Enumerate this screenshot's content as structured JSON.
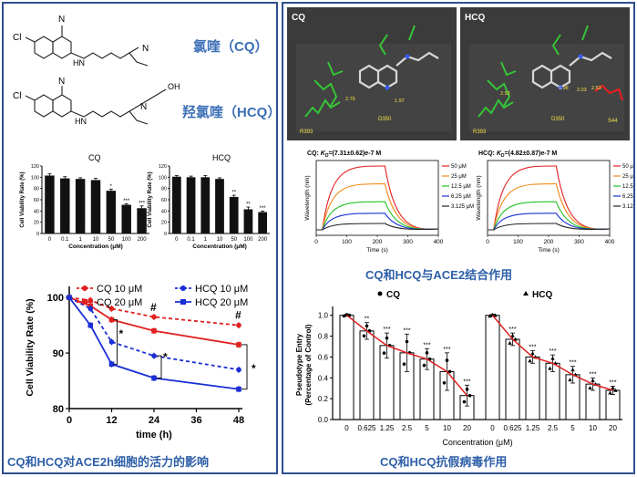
{
  "structures": {
    "cq": {
      "name": "氯喹（CQ）",
      "atoms": {
        "cl": "Cl",
        "n_ring": "N",
        "nh": "HN",
        "n": "N"
      }
    },
    "hcq": {
      "name": "羟氯喹（HCQ）",
      "atoms": {
        "cl": "Cl",
        "n_ring": "N",
        "nh": "HN",
        "n": "N",
        "oh": "OH"
      }
    }
  },
  "viability_bars": {
    "ylabel": "Cell Viability Rate (%)",
    "xlabel": "Concentration (μM)",
    "categories": [
      "0",
      "0.1",
      "1",
      "10",
      "50",
      "100",
      "200"
    ],
    "yticks": [
      "0",
      "20",
      "40",
      "60",
      "80",
      "100",
      "120"
    ],
    "ylim": [
      0,
      120
    ],
    "charts": [
      {
        "title": "CQ",
        "values": [
          103,
          98,
          97,
          95,
          76,
          51,
          45
        ],
        "errors": [
          3,
          3,
          2,
          3,
          3,
          2,
          4
        ],
        "sig": [
          "",
          "",
          "",
          "",
          "*",
          "***",
          "***"
        ]
      },
      {
        "title": "HCQ",
        "values": [
          101,
          100,
          100,
          97,
          65,
          43,
          38
        ],
        "errors": [
          2,
          2,
          3,
          2,
          3,
          4,
          2
        ],
        "sig": [
          "",
          "",
          "",
          "",
          "**",
          "**",
          "***"
        ]
      }
    ]
  },
  "time_course": {
    "type": "line",
    "ylabel": "Cell Viability Rate (%)",
    "xlabel": "time (h)",
    "x": [
      0,
      6,
      12,
      24,
      48
    ],
    "xticks": [
      "0",
      "12",
      "24",
      "36",
      "48"
    ],
    "yticks": [
      "80",
      "90",
      "100"
    ],
    "ylim": [
      80,
      102
    ],
    "series": [
      {
        "name": "CQ 10 μM",
        "color": "#e02020",
        "dash": true,
        "marker": "circle",
        "values": [
          100,
          99.5,
          98,
          96.5,
          95
        ]
      },
      {
        "name": "CQ 20 μM",
        "color": "#e02020",
        "dash": false,
        "marker": "square",
        "values": [
          100,
          98.5,
          96,
          94,
          91.5
        ]
      },
      {
        "name": "HCQ 10 μM",
        "color": "#1a2ed6",
        "dash": true,
        "marker": "circle",
        "values": [
          100,
          98,
          92,
          89.5,
          87
        ]
      },
      {
        "name": "HCQ 20 μM",
        "color": "#1a2ed6",
        "dash": false,
        "marker": "square",
        "values": [
          100,
          95,
          88,
          85.5,
          83.5
        ]
      }
    ],
    "annotations": [
      "#",
      "#",
      "*",
      "*",
      "*"
    ]
  },
  "left_caption": "CQ和HCQ对ACE2h细胞的活力的影响",
  "docking": {
    "cq": {
      "title": "CQ",
      "residues": [
        "R393",
        "D350"
      ],
      "distances": [
        "2.76",
        "1.97"
      ]
    },
    "hcq": {
      "title": "HCQ",
      "residues": [
        "R393",
        "D350",
        "S44"
      ],
      "distances": [
        "2.52",
        "1.98",
        "2.03",
        "2.63"
      ]
    }
  },
  "spr": {
    "ylabel": "Wavelength (nm)",
    "xlabel": "Time (s)",
    "xticks": [
      "0",
      "100",
      "200",
      "300",
      "400"
    ],
    "legend": [
      "50 μM",
      "25 μM",
      "12.5 μM",
      "6.25 μM",
      "3.125 μM"
    ],
    "colors": [
      "#e02020",
      "#f08c1e",
      "#22c022",
      "#1a2ed6",
      "#222222"
    ],
    "levels": [
      1.0,
      0.72,
      0.44,
      0.26,
      0.1
    ],
    "charts": [
      {
        "label": "CQ:",
        "kd_prefix": "K",
        "kd_sub": "D",
        "kd_value": "=(7.31±0.62)e-7 M"
      },
      {
        "label": "HCQ:",
        "kd_prefix": "K",
        "kd_sub": "D",
        "kd_value": "=(4.82±0.87)e-7 M"
      }
    ]
  },
  "right_mid_caption": "CQ和HCQ与ACE2结合作用",
  "pseudotype": {
    "ylabel1": "Pseudotype Entry",
    "ylabel2": "(Percentage of Control)",
    "xlabel": "Concentration (μM)",
    "yticks": [
      "0.0",
      "0.2",
      "0.4",
      "0.6",
      "0.8",
      "1.0"
    ],
    "ylim": [
      0,
      1.05
    ],
    "categories": [
      "0",
      "0.625",
      "1.25",
      "2.5",
      "5",
      "10",
      "20"
    ],
    "groups": [
      {
        "name": "CQ",
        "marker": "circle",
        "values": [
          1.0,
          0.85,
          0.71,
          0.64,
          0.58,
          0.46,
          0.23
        ],
        "errors": [
          0.01,
          0.08,
          0.12,
          0.18,
          0.1,
          0.18,
          0.1
        ],
        "sig": [
          "",
          "**",
          "***",
          "***",
          "***",
          "***",
          "***"
        ]
      },
      {
        "name": "HCQ",
        "marker": "triangle",
        "values": [
          1.0,
          0.77,
          0.6,
          0.54,
          0.43,
          0.34,
          0.28
        ],
        "errors": [
          0.01,
          0.06,
          0.06,
          0.08,
          0.08,
          0.06,
          0.04
        ],
        "sig": [
          "",
          "***",
          "***",
          "***",
          "***",
          "***",
          "***"
        ]
      }
    ]
  },
  "right_caption": "CQ和HCQ抗假病毒作用"
}
